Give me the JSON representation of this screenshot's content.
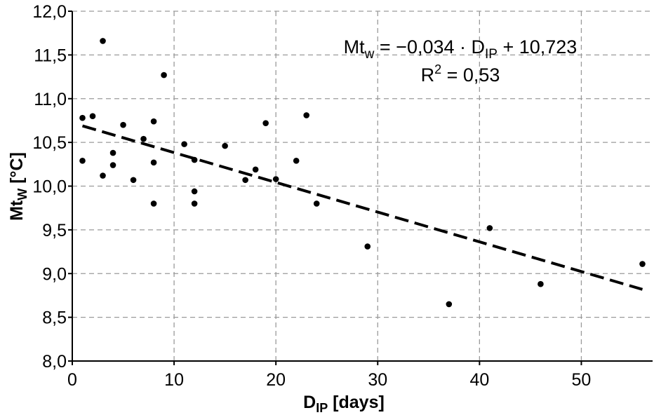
{
  "chart_data": {
    "type": "scatter",
    "title": "",
    "xlabel": {
      "main": "D",
      "sub": "IP",
      "rest": " [days]"
    },
    "ylabel": {
      "main": "Mt",
      "sub": "W",
      "rest": " [°C]"
    },
    "xlim": [
      0,
      57
    ],
    "ylim": [
      8.0,
      12.0
    ],
    "x_ticks": [
      0,
      10,
      20,
      30,
      40,
      50
    ],
    "x_tick_labels": [
      "0",
      "10",
      "20",
      "30",
      "40",
      "50"
    ],
    "y_ticks": [
      8.0,
      8.5,
      9.0,
      9.5,
      10.0,
      10.5,
      11.0,
      11.5,
      12.0
    ],
    "y_tick_labels": [
      "8,0",
      "8,5",
      "9,0",
      "9,5",
      "10,0",
      "10,5",
      "11,0",
      "11,5",
      "12,0"
    ],
    "grid": true,
    "points": [
      {
        "x": 1,
        "y": 10.78
      },
      {
        "x": 1,
        "y": 10.29
      },
      {
        "x": 2,
        "y": 10.8
      },
      {
        "x": 3,
        "y": 11.66
      },
      {
        "x": 3,
        "y": 10.12
      },
      {
        "x": 4,
        "y": 10.38
      },
      {
        "x": 4,
        "y": 10.24
      },
      {
        "x": 5,
        "y": 10.7
      },
      {
        "x": 6,
        "y": 10.07
      },
      {
        "x": 7,
        "y": 10.54
      },
      {
        "x": 8,
        "y": 10.74
      },
      {
        "x": 8,
        "y": 10.27
      },
      {
        "x": 8,
        "y": 9.8
      },
      {
        "x": 9,
        "y": 11.27
      },
      {
        "x": 11,
        "y": 10.48
      },
      {
        "x": 12,
        "y": 10.3
      },
      {
        "x": 12,
        "y": 9.94
      },
      {
        "x": 12,
        "y": 9.8
      },
      {
        "x": 15,
        "y": 10.46
      },
      {
        "x": 17,
        "y": 10.07
      },
      {
        "x": 18,
        "y": 10.19
      },
      {
        "x": 19,
        "y": 10.72
      },
      {
        "x": 20,
        "y": 10.08
      },
      {
        "x": 22,
        "y": 10.29
      },
      {
        "x": 23,
        "y": 10.81
      },
      {
        "x": 24,
        "y": 9.8
      },
      {
        "x": 29,
        "y": 9.31
      },
      {
        "x": 37,
        "y": 8.65
      },
      {
        "x": 41,
        "y": 9.52
      },
      {
        "x": 46,
        "y": 8.88
      },
      {
        "x": 56,
        "y": 9.11
      }
    ],
    "trendline": {
      "slope": -0.034,
      "intercept": 10.723,
      "x_start": 1,
      "x_end": 56,
      "style": "dashed"
    },
    "annotations": {
      "equation": {
        "lhs_main": "Mt",
        "lhs_sub": "w",
        "mid": " = −0,034 · D",
        "mid_sub": "IP",
        "rhs": " + 10,723"
      },
      "r2": {
        "main": "R",
        "sup": "2",
        "rest": " = 0,53"
      }
    },
    "colors": {
      "points": "#000000",
      "trendline": "#000000",
      "grid": "#9a9a9a",
      "axis": "#000000"
    }
  }
}
